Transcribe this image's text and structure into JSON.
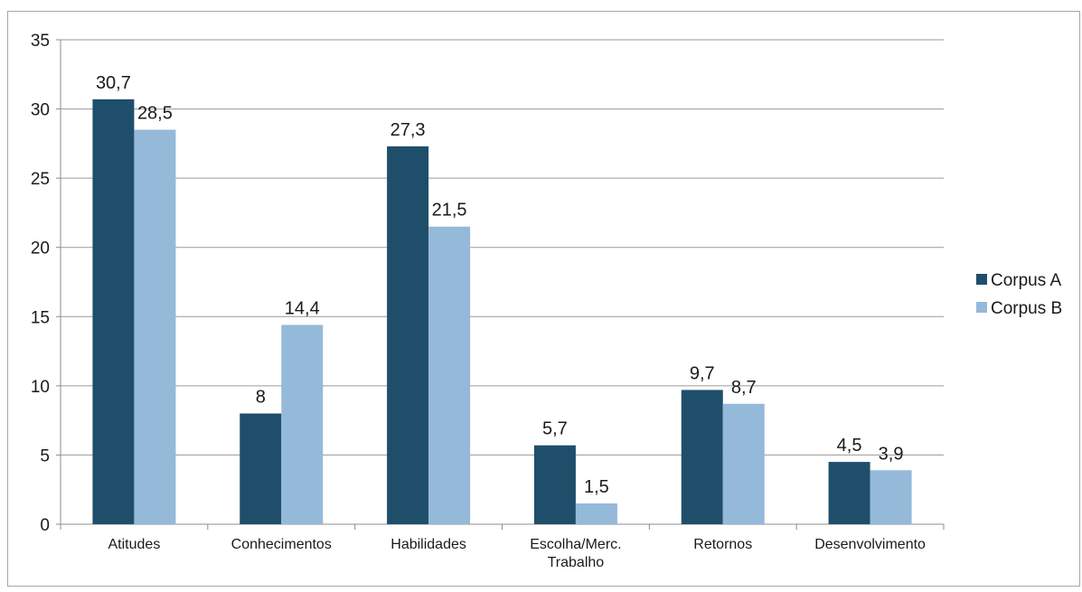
{
  "chart_data": {
    "type": "bar",
    "title": "",
    "xlabel": "",
    "ylabel": "",
    "ylim": [
      0,
      35
    ],
    "yticks": [
      0,
      5,
      10,
      15,
      20,
      25,
      30,
      35
    ],
    "grid": true,
    "legend_position": "right",
    "categories": [
      [
        "Atitudes"
      ],
      [
        "Conhecimentos"
      ],
      [
        "Habilidades"
      ],
      [
        "Escolha/Merc.",
        "Trabalho"
      ],
      [
        "Retornos"
      ],
      [
        "Desenvolvimento"
      ]
    ],
    "series": [
      {
        "name": "Corpus A",
        "color": "#1f4e6b",
        "values": [
          30.7,
          8,
          27.3,
          5.7,
          9.7,
          4.5
        ],
        "labels": [
          "30,7",
          "8",
          "27,3",
          "5,7",
          "9,7",
          "4,5"
        ]
      },
      {
        "name": "Corpus B",
        "color": "#95b9d9",
        "values": [
          28.5,
          14.4,
          21.5,
          1.5,
          8.7,
          3.9
        ],
        "labels": [
          "28,5",
          "14,4",
          "21,5",
          "1,5",
          "8,7",
          "3,9"
        ]
      }
    ]
  }
}
